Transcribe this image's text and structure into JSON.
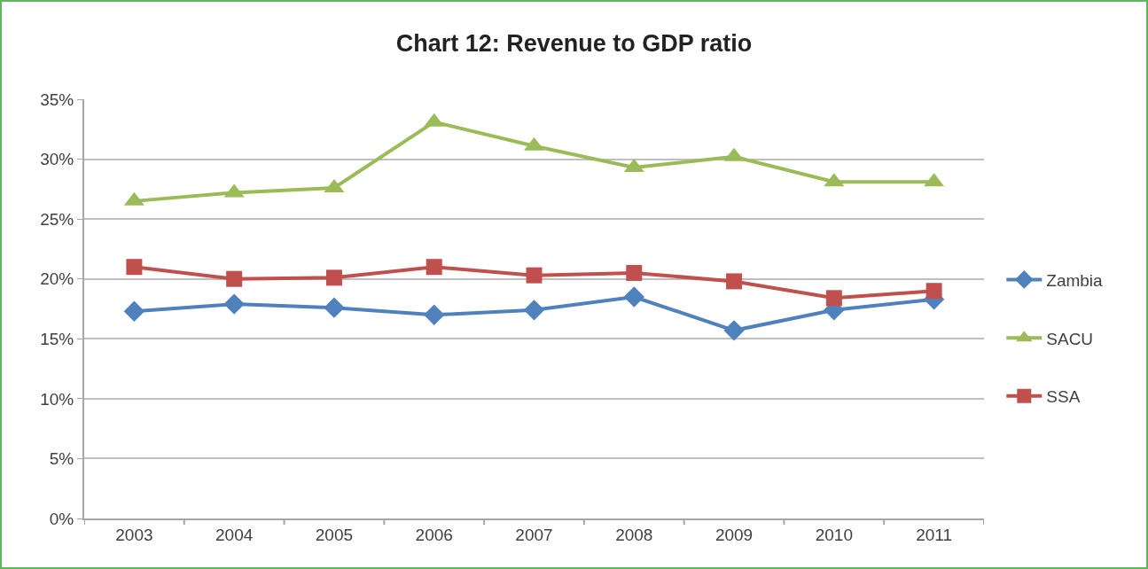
{
  "chart_data": {
    "type": "line",
    "title": "Chart 12: Revenue to GDP ratio",
    "categories": [
      "2003",
      "2004",
      "2005",
      "2006",
      "2007",
      "2008",
      "2009",
      "2010",
      "2011"
    ],
    "series": [
      {
        "name": "Zambia",
        "color": "#4f81bd",
        "marker": "diamond",
        "values": [
          17.3,
          17.9,
          17.6,
          17.0,
          17.4,
          18.5,
          15.7,
          17.4,
          18.3
        ]
      },
      {
        "name": "SACU",
        "color": "#9bbb59",
        "marker": "triangle",
        "values": [
          26.5,
          27.2,
          27.6,
          33.1,
          31.1,
          29.3,
          30.2,
          28.1,
          28.1
        ]
      },
      {
        "name": "SSA",
        "color": "#c0504d",
        "marker": "square",
        "values": [
          21.0,
          20.0,
          20.1,
          21.0,
          20.3,
          20.5,
          19.8,
          18.4,
          19.0
        ]
      }
    ],
    "ylim": [
      0,
      35
    ],
    "yticks": [
      {
        "value": 0,
        "label": "0%"
      },
      {
        "value": 5,
        "label": "5%"
      },
      {
        "value": 10,
        "label": "10%"
      },
      {
        "value": 15,
        "label": "15%"
      },
      {
        "value": 20,
        "label": "20%"
      },
      {
        "value": 25,
        "label": "25%"
      },
      {
        "value": 30,
        "label": "30%"
      },
      {
        "value": 35,
        "label": "35%"
      }
    ],
    "grid": "y",
    "legend": "right",
    "line_style": "solid"
  }
}
